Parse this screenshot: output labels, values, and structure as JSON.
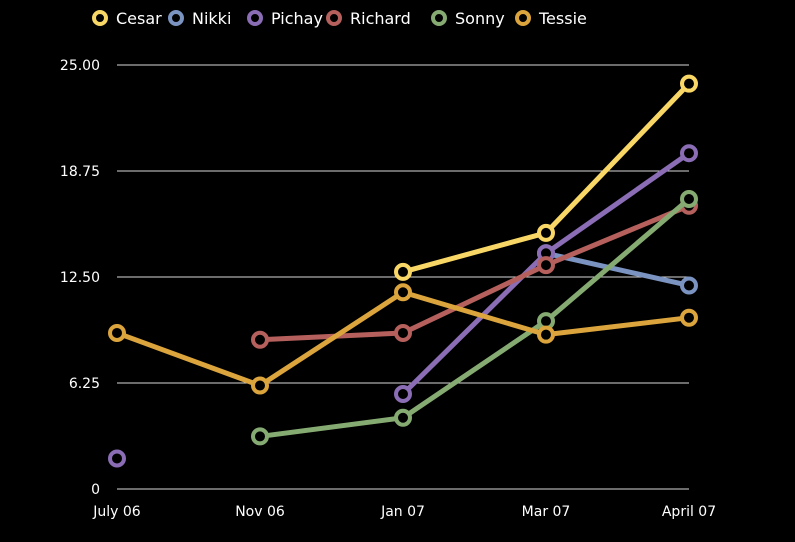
{
  "chart_data": {
    "type": "line",
    "title": "",
    "xlabel": "",
    "ylabel": "",
    "categories": [
      "July 06",
      "Nov 06",
      "Jan 07",
      "Mar 07",
      "April 07"
    ],
    "ylim": [
      0,
      25
    ],
    "yticks": [
      "0",
      "6.25",
      "12.50",
      "18.75",
      "25.00"
    ],
    "ytick_values": [
      0,
      6.25,
      12.5,
      18.75,
      25
    ],
    "grid": true,
    "legend_position": "top",
    "series": [
      {
        "name": "Cesar",
        "color": "#f8d766",
        "values": [
          null,
          null,
          12.8,
          15.1,
          23.9
        ]
      },
      {
        "name": "Nikki",
        "color": "#7a93c0",
        "values": [
          null,
          null,
          null,
          13.9,
          12.0
        ]
      },
      {
        "name": "Pichay",
        "color": "#8a6db5",
        "values": [
          1.8,
          null,
          5.6,
          13.9,
          19.8
        ]
      },
      {
        "name": "Richard",
        "color": "#b5605c",
        "values": [
          null,
          8.8,
          9.2,
          13.2,
          16.7
        ]
      },
      {
        "name": "Sonny",
        "color": "#86ab72",
        "values": [
          null,
          3.1,
          4.2,
          9.9,
          17.1
        ]
      },
      {
        "name": "Tessie",
        "color": "#dba43c",
        "values": [
          9.2,
          6.1,
          11.6,
          9.1,
          10.1
        ]
      }
    ]
  }
}
